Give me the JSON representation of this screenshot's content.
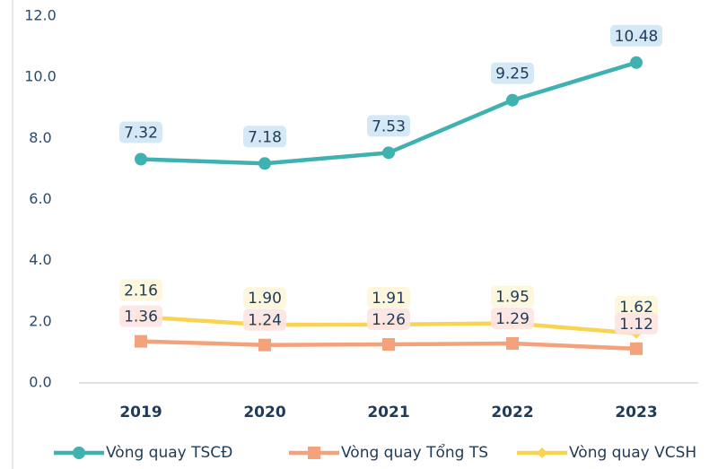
{
  "chart_data": {
    "type": "line",
    "categories": [
      "2019",
      "2020",
      "2021",
      "2022",
      "2023"
    ],
    "series": [
      {
        "name": "Vòng quay TSCĐ",
        "color": "#3fb1b1",
        "label_bg": "#cfe5f5",
        "marker": "circle",
        "values": [
          7.32,
          7.18,
          7.53,
          9.25,
          10.48
        ],
        "value_labels": [
          "7.32",
          "7.18",
          "7.53",
          "9.25",
          "10.48"
        ]
      },
      {
        "name": "Vòng quay Tổng TS",
        "color": "#f4a27c",
        "label_bg": "#fde4e2",
        "marker": "square",
        "values": [
          1.36,
          1.24,
          1.26,
          1.29,
          1.12
        ],
        "value_labels": [
          "1.36",
          "1.24",
          "1.26",
          "1.29",
          "1.12"
        ]
      },
      {
        "name": "Vòng quay VCSH",
        "color": "#f8d452",
        "label_bg": "#fdf7d9",
        "marker": "diamond",
        "values": [
          2.16,
          1.9,
          1.91,
          1.95,
          1.62
        ],
        "value_labels": [
          "2.16",
          "1.90",
          "1.91",
          "1.95",
          "1.62"
        ]
      }
    ],
    "ylim": [
      0,
      12
    ],
    "yticks": [
      {
        "value": 0,
        "label": "0.0"
      },
      {
        "value": 2,
        "label": "2.0"
      },
      {
        "value": 4,
        "label": "4.0"
      },
      {
        "value": 6,
        "label": "6.0"
      },
      {
        "value": 8,
        "label": "8.0"
      },
      {
        "value": 10,
        "label": "10.0"
      },
      {
        "value": 12,
        "label": "12.0"
      }
    ],
    "grid": false,
    "legend": "bottom"
  }
}
